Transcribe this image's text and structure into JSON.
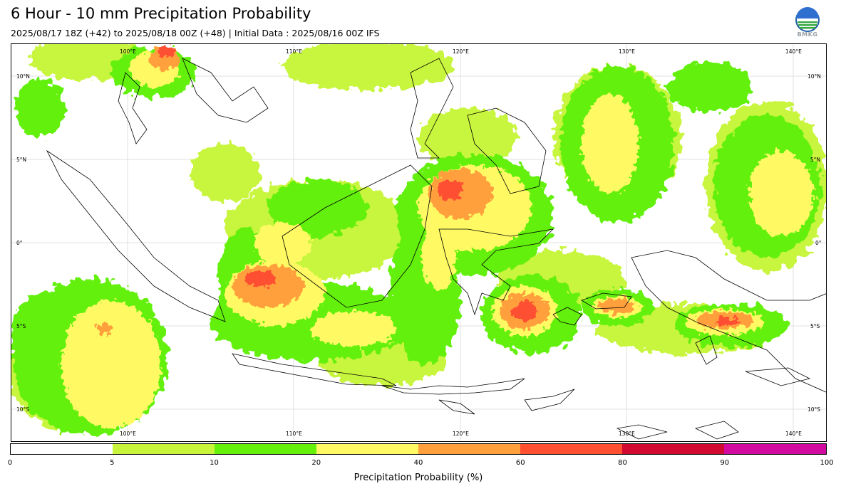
{
  "title": "6 Hour - 10 mm Precipitation Probability",
  "subtitle": "2025/08/17 18Z (+42) to 2025/08/18 00Z (+48) | Initial Data : 2025/08/16 00Z IFS",
  "logo": {
    "icon": "bmkg-logo",
    "text": "BMKG"
  },
  "map": {
    "region": "Indonesia / Maritime Continent",
    "lon_labels": [
      "100°E",
      "110°E",
      "120°E",
      "130°E",
      "140°E"
    ],
    "lat_labels": [
      "10°N",
      "5°N",
      "0°",
      "5°S",
      "10°S"
    ],
    "lon_range": [
      93.6,
      142.7
    ],
    "lat_range": [
      -12.0,
      12.0
    ],
    "gridlines": true
  },
  "colorbar": {
    "title": "Precipitation Probability (%)",
    "tick_labels": [
      "0",
      "5",
      "10",
      "20",
      "40",
      "60",
      "80",
      "90",
      "100"
    ],
    "colors": [
      "#ffffff",
      "#c8f53c",
      "#64f00a",
      "#fffa64",
      "#ffa03c",
      "#ff5032",
      "#d20a32",
      "#d20aa0"
    ]
  }
}
